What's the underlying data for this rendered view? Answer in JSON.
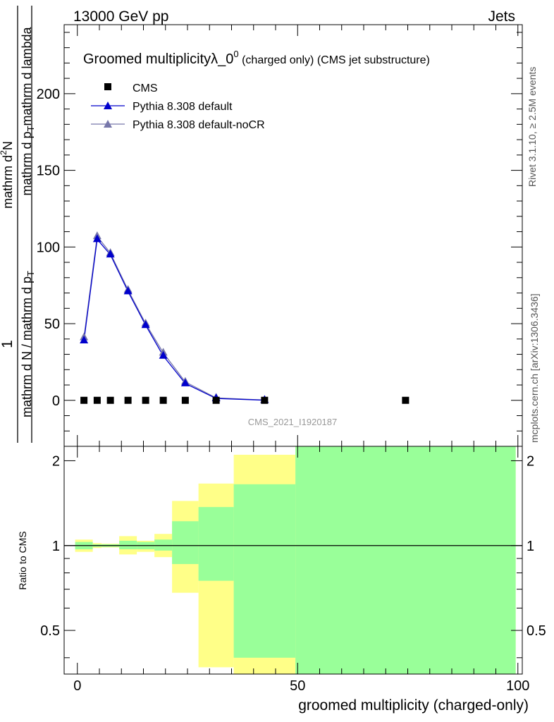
{
  "header": {
    "energy": "13000 GeV pp",
    "category": "Jets"
  },
  "side_labels": {
    "rivet": "Rivet 3.1.10, ≥ 2.5M events",
    "mcplots": "mcplots.cern.ch [arXiv:1306.3436]"
  },
  "watermark": "CMS_2021_I1920187",
  "colors": {
    "pythia_default": "#0000cc",
    "pythia_nocr": "#7777aa",
    "band_outer": "#ffff88",
    "band_inner": "#99ff99"
  },
  "chart_data": [
    {
      "type": "scatter",
      "title_main": "Groomed multiplicityλ_0",
      "title_sup": "0",
      "title_tail": " (charged only) (CMS jet substructure)",
      "ylabel": {
        "num": "mathrm dN",
        "den": "mathrm d p_T mathrm d lambda",
        "pre_num": "1",
        "pre_den": "mathrm d N / mathrm d p_T",
        "display_num": "mathrm d",
        "display_num_sup": "2",
        "display_num_tail": "N",
        "display_den": "mathrm d p",
        "display_den_sub": "T",
        "display_den_tail": "mathrm d lambda",
        "display_pre_den": "mathrm d N / mathrm d p",
        "display_pre_den_sub": "T"
      },
      "xlim": [
        -3,
        101
      ],
      "ylim": [
        -30,
        245
      ],
      "yticks": [
        0,
        50,
        100,
        150,
        200
      ],
      "legend_position": "top-left",
      "series": [
        {
          "name": "CMS",
          "marker": "square",
          "x": [
            1.5,
            4.5,
            7.5,
            11.5,
            15.5,
            19.5,
            24.5,
            31.5,
            42.5,
            74.5
          ],
          "y": [
            0,
            0,
            0,
            0,
            0,
            0,
            0,
            0,
            0,
            0
          ]
        },
        {
          "name": "Pythia 8.308 default",
          "marker": "triangle",
          "x": [
            1.5,
            4.5,
            7.5,
            11.5,
            15.5,
            19.5,
            24.5,
            31.5,
            42.5
          ],
          "y": [
            39,
            105,
            95,
            71,
            49,
            29,
            11,
            1.2,
            0.1
          ]
        },
        {
          "name": "Pythia 8.308 default-noCR",
          "marker": "triangle",
          "x": [
            1.5,
            4.5,
            7.5,
            11.5,
            15.5,
            19.5,
            24.5,
            31.5,
            42.5
          ],
          "y": [
            41,
            107,
            96,
            72,
            50,
            31,
            12,
            1.6,
            0.15
          ]
        }
      ]
    },
    {
      "type": "area",
      "ylabel": "Ratio to CMS",
      "xlabel": "groomed multiplicity (charged-only)",
      "xlim": [
        -3,
        101
      ],
      "ylim": [
        0.35,
        2.25
      ],
      "xticks": [
        0,
        50,
        100
      ],
      "yticks": [
        0.5,
        1,
        2
      ],
      "reference_line": 1,
      "bins": [
        {
          "x": [
            -0.5,
            3.5
          ],
          "inner": [
            0.97,
            1.03
          ],
          "outer": [
            0.95,
            1.05
          ]
        },
        {
          "x": [
            3.5,
            5.5
          ],
          "inner": [
            0.99,
            1.01
          ],
          "outer": [
            0.98,
            1.02
          ]
        },
        {
          "x": [
            5.5,
            9.5
          ],
          "inner": [
            0.99,
            1.01
          ],
          "outer": [
            0.985,
            1.015
          ]
        },
        {
          "x": [
            9.5,
            13.5
          ],
          "inner": [
            0.97,
            1.04
          ],
          "outer": [
            0.93,
            1.08
          ]
        },
        {
          "x": [
            13.5,
            17.5
          ],
          "inner": [
            0.97,
            1.03
          ],
          "outer": [
            0.95,
            1.04
          ]
        },
        {
          "x": [
            17.5,
            21.5
          ],
          "inner": [
            0.96,
            1.05
          ],
          "outer": [
            0.91,
            1.1
          ]
        },
        {
          "x": [
            21.5,
            27.5
          ],
          "inner": [
            0.86,
            1.22
          ],
          "outer": [
            0.68,
            1.44
          ]
        },
        {
          "x": [
            27.5,
            35.5
          ],
          "inner": [
            0.75,
            1.37
          ],
          "outer": [
            0.37,
            1.66
          ]
        },
        {
          "x": [
            35.5,
            49.5
          ],
          "inner": [
            0.4,
            1.65
          ],
          "outer": [
            0.35,
            2.1
          ]
        },
        {
          "x": [
            49.5,
            99.5
          ],
          "inner": [
            0.35,
            2.25
          ],
          "outer": [
            0.35,
            2.25
          ]
        }
      ]
    }
  ]
}
